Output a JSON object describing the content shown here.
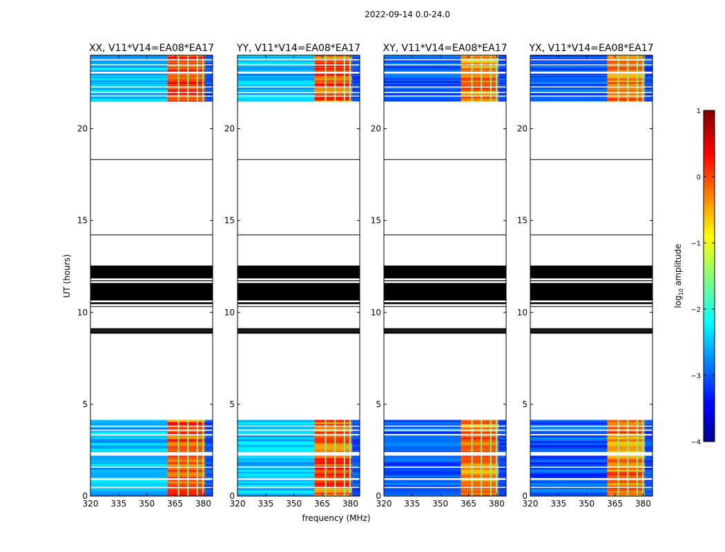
{
  "figure": {
    "suptitle": "2022-09-14 0.0-24.0",
    "xlabel": "frequency (MHz)",
    "ylabel": "UT (hours)",
    "colorbar_label_prefix": "log",
    "colorbar_label_sub": "10",
    "colorbar_label_suffix": " amplitude",
    "colorbar_ticks": [
      "1",
      "0",
      "−1",
      "−2",
      "−3",
      "−4"
    ],
    "colorbar_note": "......"
  },
  "chart_data": {
    "type": "heatmap",
    "colormap": "jet",
    "x_range_mhz": [
      320,
      385
    ],
    "x_ticks": [
      320,
      335,
      350,
      365,
      380
    ],
    "x_tick_labels": [
      "320",
      "335",
      "350",
      "365",
      "380"
    ],
    "y_range_hours": [
      0,
      24
    ],
    "y_ticks": [
      0,
      5,
      10,
      15,
      20
    ],
    "y_tick_labels": [
      "0",
      "5",
      "10",
      "15",
      "20"
    ],
    "color_range_log10": [
      -4,
      1
    ],
    "panels": [
      {
        "title": "XX, V11*V14=EA08*EA17"
      },
      {
        "title": "YY, V11*V14=EA08*EA17"
      },
      {
        "title": "XY, V11*V14=EA08*EA17"
      },
      {
        "title": "YX, V11*V14=EA08*EA17"
      }
    ],
    "data_time_ranges_hours": [
      [
        0.0,
        4.15
      ],
      [
        21.5,
        24.0
      ]
    ],
    "black_band_hours": [
      10.35,
      12.55
    ],
    "high_amplitude_freq_mhz": [
      361,
      381
    ],
    "high_amplitude_log10": 0.0,
    "background_log10": -2.6
  }
}
